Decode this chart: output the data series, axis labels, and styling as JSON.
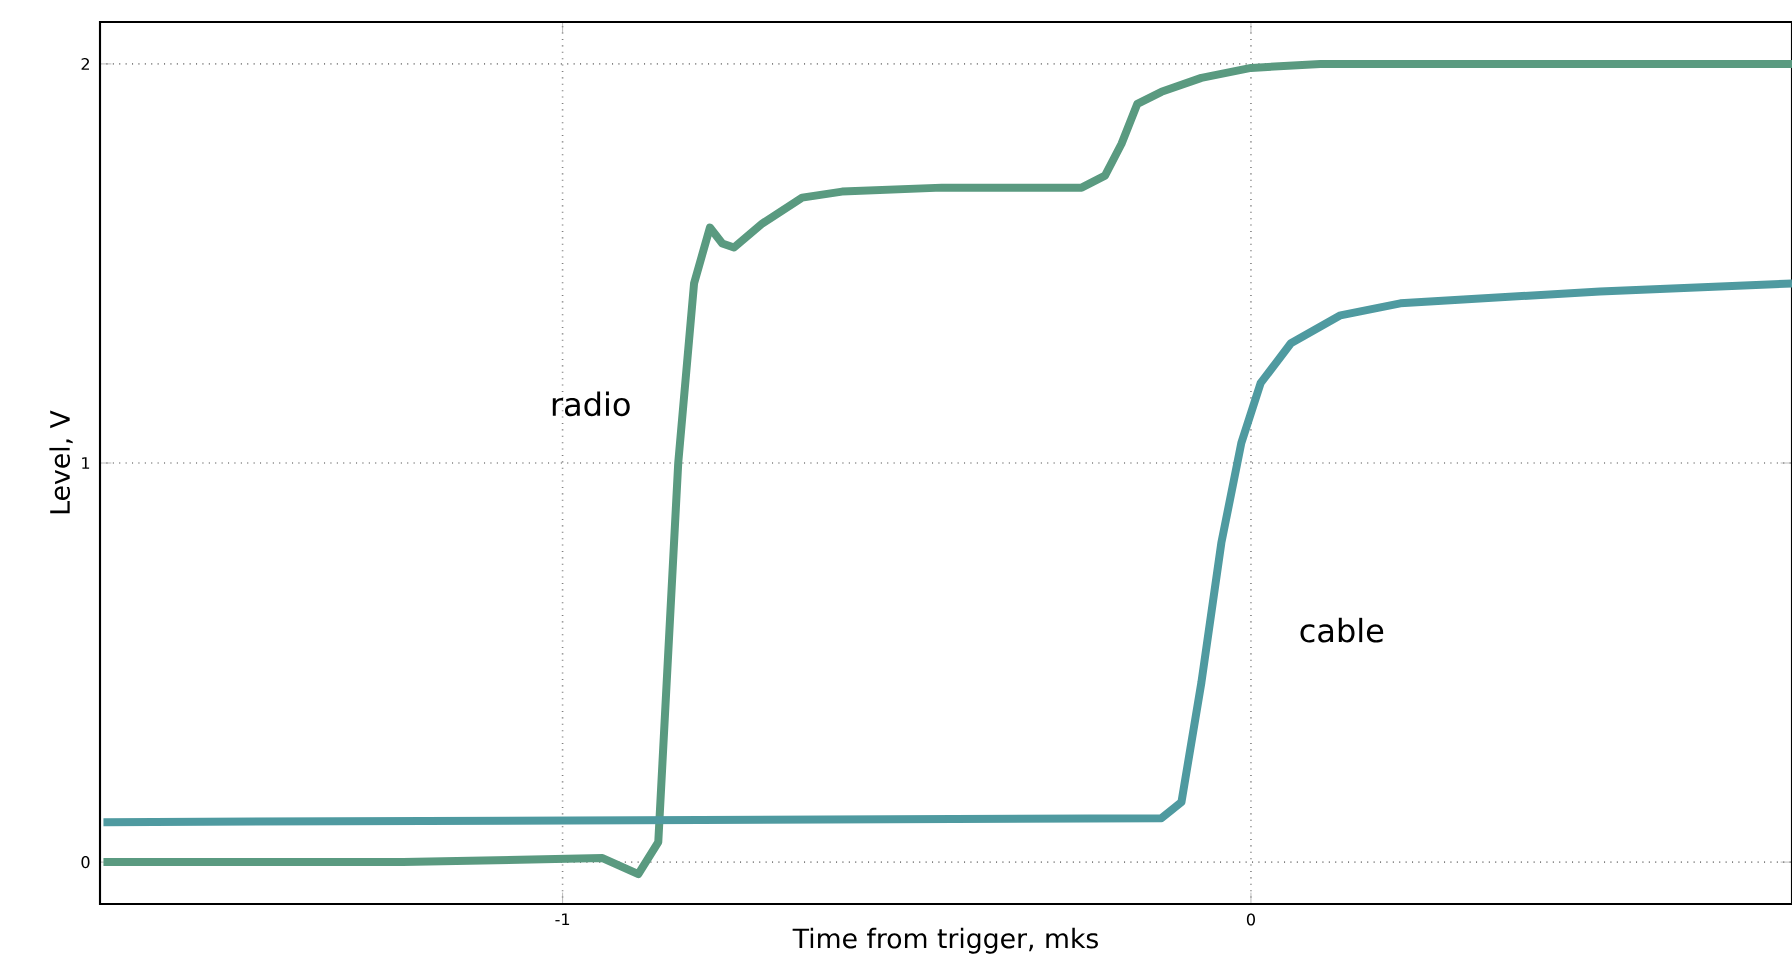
{
  "chart_data": {
    "type": "line",
    "xlabel": "Time from trigger, mks",
    "ylabel": "Level, V",
    "xlim": [
      -1.672,
      0.786
    ],
    "ylim": [
      -0.105,
      2.105
    ],
    "xticks": [
      -1,
      0
    ],
    "yticks": [
      0,
      1,
      2
    ],
    "grid": true,
    "line_style": "solid",
    "series": [
      {
        "name": "radio",
        "color": "#5a9a80",
        "x": [
          -1.667,
          -1.232,
          -0.942,
          -0.89,
          -0.861,
          -0.832,
          -0.809,
          -0.786,
          -0.768,
          -0.751,
          -0.71,
          -0.652,
          -0.594,
          -0.449,
          -0.246,
          -0.212,
          -0.188,
          -0.165,
          -0.13,
          -0.072,
          0,
          0.101,
          0.786
        ],
        "values": [
          0.0,
          0.0,
          0.01,
          -0.03,
          0.05,
          1.0,
          1.45,
          1.59,
          1.55,
          1.54,
          1.6,
          1.665,
          1.68,
          1.69,
          1.69,
          1.72,
          1.8,
          1.9,
          1.93,
          1.965,
          1.99,
          2.0,
          2.0
        ]
      },
      {
        "name": "cable",
        "color": "#4f9aa0",
        "x": [
          -1.667,
          -0.13,
          -0.101,
          -0.072,
          -0.043,
          -0.014,
          0.014,
          0.058,
          0.13,
          0.217,
          0.507,
          0.786
        ],
        "values": [
          0.1,
          0.11,
          0.15,
          0.45,
          0.8,
          1.05,
          1.2,
          1.3,
          1.37,
          1.4,
          1.43,
          1.45
        ]
      }
    ]
  }
}
